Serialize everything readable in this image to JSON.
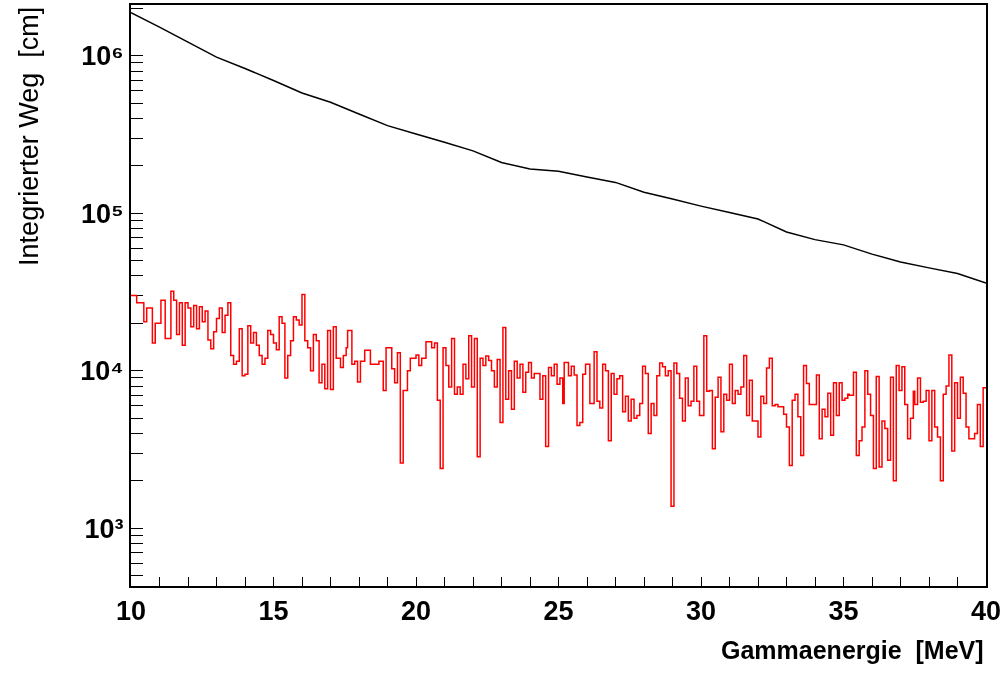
{
  "chart_data": {
    "type": "step",
    "xlabel": "Gammaenergie  [MeV]",
    "ylabel": "Integrierter Weg  [cm]",
    "log": "y",
    "marker": "none",
    "line_style": "solid",
    "xlim": [
      10,
      40
    ],
    "ylim": [
      430,
      2100000
    ],
    "xticks": [
      10,
      {
        "value": 11,
        "label": null
      },
      {
        "value": 12,
        "label": null
      },
      {
        "value": 13,
        "label": null
      },
      {
        "value": 14,
        "label": null
      },
      15,
      {
        "value": 16,
        "label": null
      },
      {
        "value": 17,
        "label": null
      },
      {
        "value": 18,
        "label": null
      },
      {
        "value": 19,
        "label": null
      },
      20,
      {
        "value": 21,
        "label": null
      },
      {
        "value": 22,
        "label": null
      },
      {
        "value": 23,
        "label": null
      },
      {
        "value": 24,
        "label": null
      },
      25,
      {
        "value": 26,
        "label": null
      },
      {
        "value": 27,
        "label": null
      },
      {
        "value": 28,
        "label": null
      },
      {
        "value": 29,
        "label": null
      },
      30,
      {
        "value": 31,
        "label": null
      },
      {
        "value": 32,
        "label": null
      },
      {
        "value": 33,
        "label": null
      },
      {
        "value": 34,
        "label": null
      },
      35,
      {
        "value": 36,
        "label": null
      },
      {
        "value": 37,
        "label": null
      },
      {
        "value": 38,
        "label": null
      },
      {
        "value": 39,
        "label": null
      },
      40
    ],
    "yticks": [
      {
        "value": 500,
        "label": null
      },
      {
        "value": 600,
        "label": null
      },
      {
        "value": 700,
        "label": null
      },
      {
        "value": 800,
        "label": null
      },
      {
        "value": 900,
        "label": null
      },
      {
        "value": 1000,
        "label": "10³"
      },
      {
        "value": 2000,
        "label": null
      },
      {
        "value": 3000,
        "label": null
      },
      {
        "value": 4000,
        "label": null
      },
      {
        "value": 5000,
        "label": null
      },
      {
        "value": 6000,
        "label": null
      },
      {
        "value": 7000,
        "label": null
      },
      {
        "value": 8000,
        "label": null
      },
      {
        "value": 9000,
        "label": null
      },
      {
        "value": 10000,
        "label": "10⁴"
      },
      {
        "value": 20000,
        "label": null
      },
      {
        "value": 30000,
        "label": null
      },
      {
        "value": 40000,
        "label": null
      },
      {
        "value": 50000,
        "label": null
      },
      {
        "value": 60000,
        "label": null
      },
      {
        "value": 70000,
        "label": null
      },
      {
        "value": 80000,
        "label": null
      },
      {
        "value": 90000,
        "label": null
      },
      {
        "value": 100000,
        "label": "10⁵"
      },
      {
        "value": 200000,
        "label": null
      },
      {
        "value": 300000,
        "label": null
      },
      {
        "value": 400000,
        "label": null
      },
      {
        "value": 500000,
        "label": null
      },
      {
        "value": 600000,
        "label": null
      },
      {
        "value": 700000,
        "label": null
      },
      {
        "value": 800000,
        "label": null
      },
      {
        "value": 900000,
        "label": null
      },
      {
        "value": 1000000,
        "label": "10⁶"
      },
      {
        "value": 2000000,
        "label": null
      }
    ],
    "series": [
      {
        "type": "line",
        "color": "#000000",
        "x": [
          10,
          11,
          12,
          13,
          14,
          15,
          16,
          17,
          18,
          19,
          20,
          21,
          22,
          23,
          24,
          25,
          26,
          27,
          28,
          29,
          30,
          31,
          32,
          33,
          34,
          35,
          36,
          37,
          38,
          39,
          40
        ],
        "values": [
          1880000,
          1520000,
          1220000,
          980000,
          830000,
          696000,
          580000,
          507000,
          427000,
          360000,
          319000,
          282000,
          249000,
          210000,
          191000,
          185000,
          170000,
          157000,
          136000,
          123000,
          111000,
          101000,
          92000,
          76000,
          68000,
          63000,
          55000,
          49000,
          45000,
          41500,
          36000
        ]
      },
      {
        "color": "#ff0000",
        "x": [
          10.0,
          10.2,
          10.45,
          10.55,
          10.75,
          10.85,
          11.05,
          11.2,
          11.4,
          11.5,
          11.6,
          11.7,
          11.8,
          11.9,
          12.0,
          12.1,
          12.2,
          12.3,
          12.4,
          12.5,
          12.6,
          12.7,
          12.8,
          12.9,
          13.0,
          13.1,
          13.2,
          13.3,
          13.4,
          13.5,
          13.6,
          13.7,
          13.8,
          13.9,
          14.0,
          14.1,
          14.2,
          14.3,
          14.4,
          14.5,
          14.6,
          14.7,
          14.8,
          14.9,
          15.0,
          15.1,
          15.2,
          15.3,
          15.4,
          15.5,
          15.6,
          15.7,
          15.8,
          15.9,
          16.0,
          16.1,
          16.2,
          16.3,
          16.4,
          16.5,
          16.6,
          16.7,
          16.8,
          16.9,
          17.0,
          17.1,
          17.2,
          17.35,
          17.45,
          17.55,
          17.6,
          17.75,
          17.85,
          17.95,
          18.05,
          18.2,
          18.4,
          18.7,
          18.85,
          18.95,
          19.15,
          19.25,
          19.35,
          19.45,
          19.55,
          19.7,
          19.8,
          20.0,
          20.1,
          20.2,
          20.35,
          20.55,
          20.65,
          20.75,
          20.85,
          20.95,
          21.05,
          21.15,
          21.25,
          21.35,
          21.45,
          21.55,
          21.65,
          21.75,
          21.85,
          21.95,
          22.05,
          22.15,
          22.25,
          22.35,
          22.45,
          22.55,
          22.65,
          22.75,
          22.85,
          22.95,
          23.05,
          23.15,
          23.25,
          23.35,
          23.45,
          23.55,
          23.65,
          23.75,
          23.85,
          23.95,
          24.05,
          24.15,
          24.35,
          24.45,
          24.55,
          24.65,
          24.75,
          24.85,
          24.95,
          25.05,
          25.15,
          25.2,
          25.35,
          25.45,
          25.55,
          25.65,
          25.75,
          25.85,
          25.95,
          26.1,
          26.25,
          26.35,
          26.45,
          26.55,
          26.65,
          26.75,
          26.85,
          26.95,
          27.05,
          27.15,
          27.25,
          27.35,
          27.45,
          27.55,
          27.65,
          27.75,
          27.85,
          27.95,
          28.05,
          28.15,
          28.25,
          28.35,
          28.45,
          28.55,
          28.65,
          28.75,
          28.85,
          28.95,
          29.05,
          29.15,
          29.25,
          29.35,
          29.45,
          29.55,
          29.65,
          29.75,
          29.85,
          29.95,
          30.1,
          30.2,
          30.3,
          30.4,
          30.5,
          30.6,
          30.7,
          30.8,
          30.9,
          31.0,
          31.1,
          31.2,
          31.3,
          31.4,
          31.5,
          31.6,
          31.7,
          31.8,
          32.0,
          32.1,
          32.2,
          32.3,
          32.4,
          32.5,
          32.6,
          32.7,
          32.9,
          33.0,
          33.1,
          33.2,
          33.3,
          33.4,
          33.5,
          33.6,
          33.7,
          33.8,
          33.9,
          34.05,
          34.15,
          34.25,
          34.35,
          34.45,
          34.55,
          34.65,
          34.75,
          34.85,
          34.95,
          35.05,
          35.15,
          35.2,
          35.35,
          35.45,
          35.55,
          35.65,
          35.75,
          35.85,
          35.95,
          36.05,
          36.15,
          36.25,
          36.35,
          36.45,
          36.55,
          36.65,
          36.75,
          36.85,
          36.95,
          37.05,
          37.15,
          37.25,
          37.35,
          37.45,
          37.5,
          37.6,
          37.7,
          37.8,
          37.9,
          38.0,
          38.1,
          38.2,
          38.3,
          38.4,
          38.5,
          38.6,
          38.7,
          38.8,
          38.9,
          39.0,
          39.1,
          39.2,
          39.3,
          39.4,
          39.5,
          39.6,
          39.7,
          39.8,
          39.9,
          40
        ],
        "values": [
          30000,
          27000,
          20500,
          25000,
          15000,
          20000,
          28000,
          16000,
          32000,
          28000,
          17000,
          27000,
          14500,
          27000,
          25000,
          19000,
          26000,
          18500,
          25500,
          20500,
          24000,
          15700,
          13800,
          17700,
          21500,
          25000,
          17500,
          22500,
          27000,
          12500,
          11000,
          11500,
          18500,
          9300,
          9500,
          19300,
          15000,
          17500,
          14500,
          12500,
          11000,
          12000,
          18000,
          17000,
          15000,
          13600,
          22000,
          20000,
          9000,
          12500,
          15500,
          22000,
          21000,
          19500,
          30500,
          15500,
          14000,
          10000,
          17000,
          15500,
          8400,
          11000,
          7700,
          18000,
          7600,
          19000,
          12000,
          10500,
          12500,
          14000,
          18000,
          11000,
          11500,
          8500,
          11500,
          13500,
          11000,
          11500,
          7500,
          14000,
          10300,
          8400,
          13000,
          2600,
          7500,
          10000,
          12000,
          12600,
          10800,
          12000,
          15300,
          14000,
          15000,
          6500,
          2400,
          14000,
          10800,
          7900,
          16000,
          7100,
          7900,
          7100,
          11000,
          8900,
          16700,
          7900,
          16000,
          2850,
          12000,
          10800,
          12400,
          11600,
          10000,
          7900,
          11800,
          4700,
          18800,
          6600,
          10000,
          5700,
          11500,
          9000,
          11000,
          7300,
          9800,
          11300,
          9000,
          9600,
          6600,
          9300,
          3300,
          10500,
          9300,
          11000,
          8200,
          9000,
          6200,
          11300,
          9300,
          10700,
          9400,
          4500,
          4700,
          9500,
          11000,
          6200,
          13200,
          6400,
          5800,
          11000,
          10000,
          3600,
          9600,
          7100,
          8900,
          9300,
          5500,
          6900,
          4800,
          6600,
          5000,
          5200,
          6200,
          10700,
          9600,
          4000,
          6200,
          5200,
          9300,
          11200,
          10600,
          9300,
          10000,
          1380,
          11200,
          9600,
          6700,
          4800,
          9000,
          6000,
          6400,
          10700,
          6400,
          5200,
          16700,
          7400,
          7500,
          3200,
          6800,
          9100,
          4100,
          7100,
          6500,
          11000,
          6200,
          7500,
          7100,
          7900,
          12500,
          5200,
          8700,
          4800,
          3800,
          6900,
          6200,
          10400,
          12000,
          6000,
          6100,
          5900,
          5300,
          4400,
          2500,
          6500,
          7100,
          5100,
          2900,
          10800,
          8300,
          6100,
          6100,
          9400,
          3700,
          5700,
          5100,
          7200,
          3900,
          8400,
          5200,
          8400,
          6500,
          6700,
          7100,
          7000,
          9800,
          2900,
          3600,
          4400,
          10000,
          7100,
          5200,
          2400,
          9200,
          2450,
          4800,
          4300,
          2700,
          9100,
          2000,
          10800,
          7500,
          10600,
          6100,
          3700,
          5000,
          7400,
          6100,
          9000,
          6300,
          6400,
          7500,
          3600,
          7500,
          4400,
          3800,
          2000,
          7100,
          8000,
          12600,
          3100,
          8400,
          5000,
          9100,
          7200,
          4400,
          3700,
          3700,
          4000,
          6100,
          3300,
          7800,
          7800
        ]
      }
    ]
  }
}
